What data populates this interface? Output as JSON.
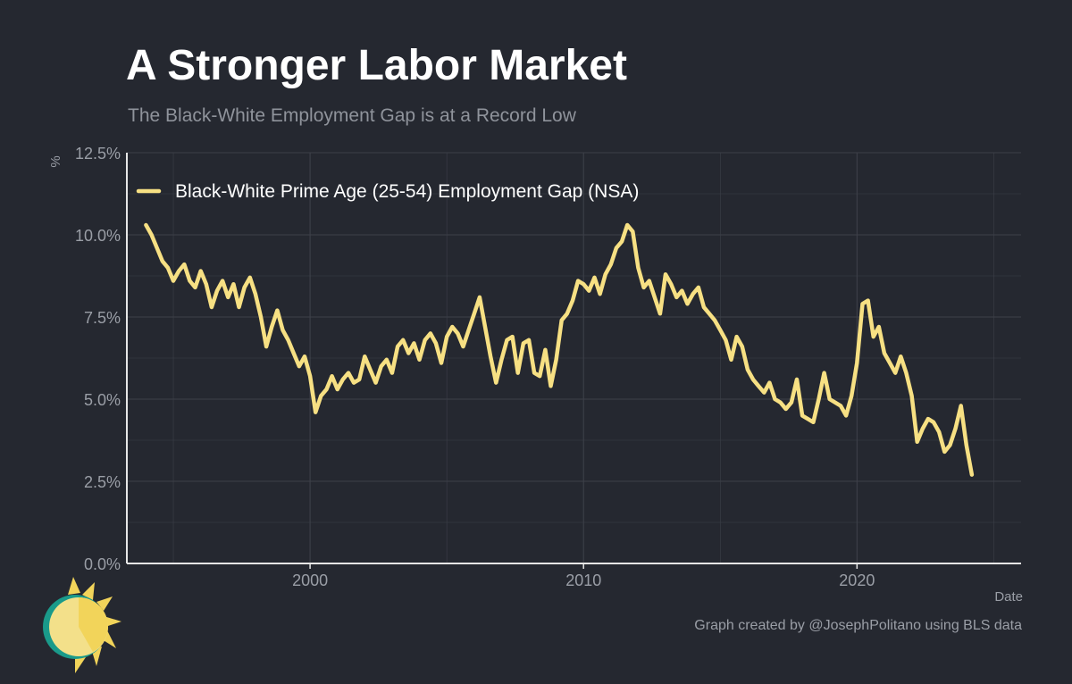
{
  "header": {
    "title": "A Stronger Labor Market",
    "subtitle": "The Black-White Employment Gap is at a Record Low"
  },
  "caption": "Graph created by @JosephPolitano using BLS data",
  "colors": {
    "background": "#252830",
    "line": "#f7e083",
    "grid": "#3d4049",
    "axis": "#e6e6e6",
    "tick_text": "#9a9ea6"
  },
  "logo": {
    "icon": "sun-logo-icon"
  },
  "chart_data": {
    "type": "line",
    "title": "A Stronger Labor Market",
    "subtitle": "The Black-White Employment Gap is at a Record Low",
    "xlabel": "Date",
    "ylabel": "%",
    "xlim": [
      1993.3,
      2026.0
    ],
    "ylim": [
      0,
      12.5
    ],
    "x_ticks": [
      2000,
      2010,
      2020
    ],
    "x_tick_labels": [
      "2000",
      "2010",
      "2020"
    ],
    "y_ticks": [
      0,
      2.5,
      5,
      7.5,
      10,
      12.5
    ],
    "y_tick_labels": [
      "0.0%",
      "2.5%",
      "5.0%",
      "7.5%",
      "10.0%",
      "12.5%"
    ],
    "grid": true,
    "legend": {
      "position": "top-left"
    },
    "series": [
      {
        "name": "Black-White Prime Age (25-54) Employment Gap (NSA)",
        "x": [
          1994.0,
          1994.2,
          1994.4,
          1994.6,
          1994.8,
          1995.0,
          1995.2,
          1995.4,
          1995.6,
          1995.8,
          1996.0,
          1996.2,
          1996.4,
          1996.6,
          1996.8,
          1997.0,
          1997.2,
          1997.4,
          1997.6,
          1997.8,
          1998.0,
          1998.2,
          1998.4,
          1998.6,
          1998.8,
          1999.0,
          1999.2,
          1999.4,
          1999.6,
          1999.8,
          2000.0,
          2000.2,
          2000.4,
          2000.6,
          2000.8,
          2001.0,
          2001.2,
          2001.4,
          2001.6,
          2001.8,
          2002.0,
          2002.2,
          2002.4,
          2002.6,
          2002.8,
          2003.0,
          2003.2,
          2003.4,
          2003.6,
          2003.8,
          2004.0,
          2004.2,
          2004.4,
          2004.6,
          2004.8,
          2005.0,
          2005.2,
          2005.4,
          2005.6,
          2005.8,
          2006.0,
          2006.2,
          2006.4,
          2006.6,
          2006.8,
          2007.0,
          2007.2,
          2007.4,
          2007.6,
          2007.8,
          2008.0,
          2008.2,
          2008.4,
          2008.6,
          2008.8,
          2009.0,
          2009.2,
          2009.4,
          2009.6,
          2009.8,
          2010.0,
          2010.2,
          2010.4,
          2010.6,
          2010.8,
          2011.0,
          2011.2,
          2011.4,
          2011.6,
          2011.8,
          2012.0,
          2012.2,
          2012.4,
          2012.6,
          2012.8,
          2013.0,
          2013.2,
          2013.4,
          2013.6,
          2013.8,
          2014.0,
          2014.2,
          2014.4,
          2014.6,
          2014.8,
          2015.0,
          2015.2,
          2015.4,
          2015.6,
          2015.8,
          2016.0,
          2016.2,
          2016.4,
          2016.6,
          2016.8,
          2017.0,
          2017.2,
          2017.4,
          2017.6,
          2017.8,
          2018.0,
          2018.2,
          2018.4,
          2018.6,
          2018.8,
          2019.0,
          2019.2,
          2019.4,
          2019.6,
          2019.8,
          2020.0,
          2020.2,
          2020.4,
          2020.6,
          2020.8,
          2021.0,
          2021.2,
          2021.4,
          2021.6,
          2021.8,
          2022.0,
          2022.2,
          2022.4,
          2022.6,
          2022.8,
          2023.0,
          2023.2,
          2023.4,
          2023.6,
          2023.8,
          2024.0,
          2024.2
        ],
        "values": [
          10.3,
          10.0,
          9.6,
          9.2,
          9.0,
          8.6,
          8.9,
          9.1,
          8.6,
          8.4,
          8.9,
          8.5,
          7.8,
          8.3,
          8.6,
          8.1,
          8.5,
          7.8,
          8.4,
          8.7,
          8.2,
          7.5,
          6.6,
          7.2,
          7.7,
          7.1,
          6.8,
          6.4,
          6.0,
          6.3,
          5.7,
          4.6,
          5.1,
          5.3,
          5.7,
          5.3,
          5.6,
          5.8,
          5.5,
          5.6,
          6.3,
          5.9,
          5.5,
          6.0,
          6.2,
          5.8,
          6.6,
          6.8,
          6.4,
          6.7,
          6.2,
          6.8,
          7.0,
          6.7,
          6.1,
          6.9,
          7.2,
          7.0,
          6.6,
          7.1,
          7.6,
          8.1,
          7.2,
          6.3,
          5.5,
          6.2,
          6.8,
          6.9,
          5.8,
          6.7,
          6.8,
          5.8,
          5.7,
          6.5,
          5.4,
          6.2,
          7.4,
          7.6,
          8.0,
          8.6,
          8.5,
          8.3,
          8.7,
          8.2,
          8.8,
          9.1,
          9.6,
          9.8,
          10.3,
          10.1,
          9.0,
          8.4,
          8.6,
          8.1,
          7.6,
          8.8,
          8.5,
          8.1,
          8.3,
          7.9,
          8.2,
          8.4,
          7.8,
          7.6,
          7.4,
          7.1,
          6.8,
          6.2,
          6.9,
          6.6,
          5.9,
          5.6,
          5.4,
          5.2,
          5.5,
          5.0,
          4.9,
          4.7,
          4.9,
          5.6,
          4.5,
          4.4,
          4.3,
          5.0,
          5.8,
          5.0,
          4.9,
          4.8,
          4.5,
          5.1,
          6.1,
          7.9,
          8.0,
          6.9,
          7.2,
          6.4,
          6.1,
          5.8,
          6.3,
          5.8,
          5.1,
          3.7,
          4.1,
          4.4,
          4.3,
          4.0,
          3.4,
          3.6,
          4.1,
          4.8,
          3.6,
          2.7
        ]
      }
    ]
  }
}
